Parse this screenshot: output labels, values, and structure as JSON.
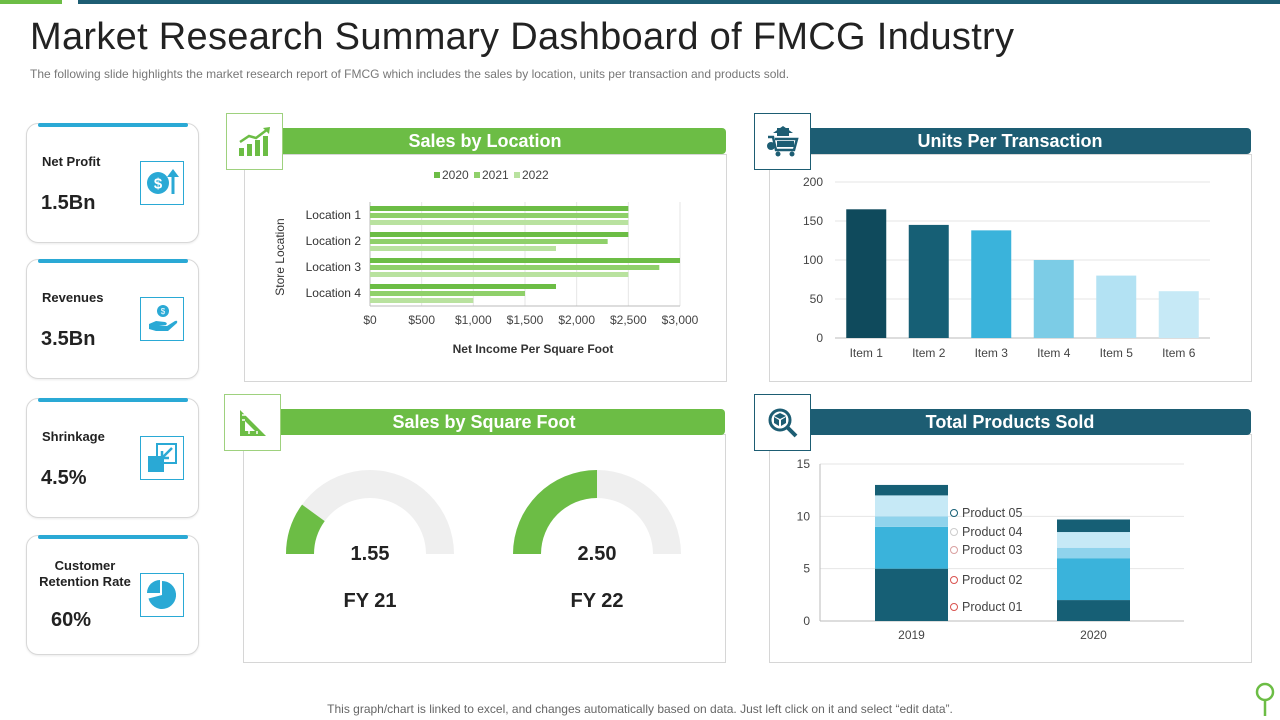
{
  "header": {
    "title": "Market Research Summary Dashboard of FMCG Industry",
    "subtitle": "The following  slide highlights the market research report of FMCG which includes the sales by location, units per transaction and products sold."
  },
  "kpis": [
    {
      "label": "Net Profit",
      "value": "1.5Bn",
      "icon": "dollar-up-icon"
    },
    {
      "label": "Revenues",
      "value": "3.5Bn",
      "icon": "hand-money-icon"
    },
    {
      "label": "Shrinkage",
      "value": "4.5%",
      "icon": "shrink-arrow-icon"
    },
    {
      "label": "Customer Retention Rate",
      "value": "60%",
      "icon": "pie-chart-icon"
    }
  ],
  "panels": {
    "sales_location": {
      "title": "Sales by Location",
      "icon": "growth-chart-icon"
    },
    "units": {
      "title": "Units Per Transaction",
      "icon": "shopping-cart-icon"
    },
    "sales_sqft": {
      "title": "Sales by Square Foot",
      "icon": "set-square-icon"
    },
    "products": {
      "title": "Total Products Sold",
      "icon": "magnifier-box-icon"
    }
  },
  "footer": {
    "text": "This graph/chart is linked to excel,  and changes automatically based on data. Just left click on it and select “edit data”."
  },
  "colors": {
    "green": "#6cbd45",
    "teal": "#1d5d73",
    "cyan": "#2aa9d5"
  },
  "chart_data": [
    {
      "type": "bar",
      "orientation": "horizontal",
      "title": "Sales by Location",
      "categories": [
        "Location 1",
        "Location 2",
        "Location 3",
        "Location 4"
      ],
      "series": [
        {
          "name": "2020",
          "values": [
            2500,
            2500,
            3000,
            1800
          ],
          "color": "#6cbd45"
        },
        {
          "name": "2021",
          "values": [
            2500,
            2300,
            2800,
            1500
          ],
          "color": "#8fd06a"
        },
        {
          "name": "2022",
          "values": [
            2500,
            1800,
            2500,
            1000
          ],
          "color": "#b9e29f"
        }
      ],
      "xlabel": "Net Income Per Square Foot",
      "ylabel": "Store Location",
      "xlim": [
        0,
        3000
      ],
      "xticks": [
        "$0",
        "$500",
        "$1,000",
        "$1,500",
        "$2,000",
        "$2,500",
        "$3,000"
      ],
      "legend": "top"
    },
    {
      "type": "bar",
      "title": "Units Per Transaction",
      "categories": [
        "Item 1",
        "Item 2",
        "Item 3",
        "Item 4",
        "Item 5",
        "Item 6"
      ],
      "values": [
        165,
        145,
        138,
        100,
        80,
        60
      ],
      "colors": [
        "#0f4a5c",
        "#165f75",
        "#3ab3db",
        "#7ccce6",
        "#b3e2f3",
        "#c6e9f6"
      ],
      "ylim": [
        0,
        200
      ],
      "yticks": [
        "0",
        "50",
        "100",
        "150",
        "200"
      ]
    },
    {
      "type": "gauge",
      "title": "Sales by Square Foot",
      "gauges": [
        {
          "value": 1.55,
          "value_label": "1.55",
          "label": "FY 21",
          "fraction": 0.2
        },
        {
          "value": 2.5,
          "value_label": "2.50",
          "label": "FY 22",
          "fraction": 0.5
        }
      ]
    },
    {
      "type": "stacked-bar",
      "title": "Total Products Sold",
      "categories": [
        "2019",
        "2020"
      ],
      "series": [
        {
          "name": "Product 01",
          "values": [
            5,
            2
          ],
          "color": "#165f75"
        },
        {
          "name": "Product 02",
          "values": [
            4,
            4
          ],
          "color": "#3ab3db"
        },
        {
          "name": "Product 03",
          "values": [
            1,
            1
          ],
          "color": "#8fd3ec"
        },
        {
          "name": "Product 04",
          "values": [
            2,
            1.5
          ],
          "color": "#c6e9f6"
        },
        {
          "name": "Product 05",
          "values": [
            1,
            1.2
          ],
          "color": "#165f75"
        }
      ],
      "ylim": [
        0,
        15
      ],
      "yticks": [
        "0",
        "5",
        "10",
        "15"
      ]
    }
  ]
}
